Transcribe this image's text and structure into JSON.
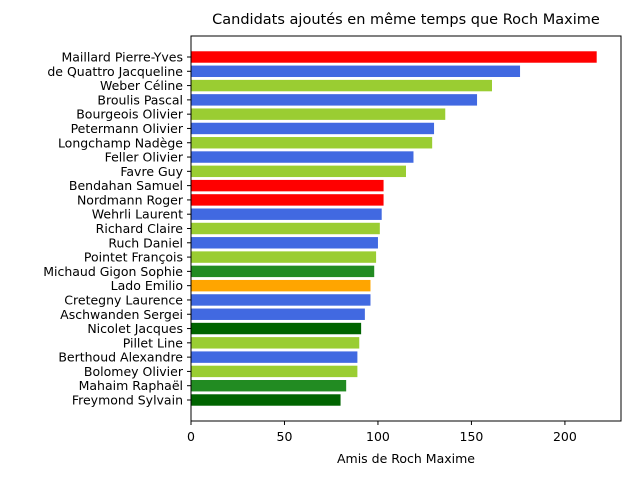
{
  "chart_data": {
    "type": "bar",
    "orientation": "horizontal",
    "title": "Candidats ajoutés en même temps que Roch Maxime",
    "xlabel": "Amis de Roch Maxime",
    "ylabel": "",
    "xlim": [
      0,
      230
    ],
    "xticks": [
      0,
      50,
      100,
      150,
      200
    ],
    "grid": false,
    "categories": [
      "Maillard Pierre-Yves",
      "de Quattro Jacqueline",
      "Weber Céline",
      "Broulis Pascal",
      "Bourgeois Olivier",
      "Petermann Olivier",
      "Longchamp Nadège",
      "Feller Olivier",
      "Favre Guy",
      "Bendahan Samuel",
      "Nordmann Roger",
      "Wehrli Laurent",
      "Richard Claire",
      "Ruch Daniel",
      "Pointet François",
      "Michaud Gigon Sophie",
      "Lado Emilio",
      "Cretegny Laurence",
      "Aschwanden Sergei",
      "Nicolet Jacques",
      "Pillet Line",
      "Berthoud Alexandre",
      "Bolomey Olivier",
      "Mahaim Raphaël",
      "Freymond Sylvain"
    ],
    "values": [
      217,
      176,
      161,
      153,
      136,
      130,
      129,
      119,
      115,
      103,
      103,
      102,
      101,
      100,
      99,
      98,
      96,
      96,
      93,
      91,
      90,
      89,
      89,
      83,
      80
    ],
    "colors": [
      "#ff0000",
      "#4169e1",
      "#9acd32",
      "#4169e1",
      "#9acd32",
      "#4169e1",
      "#9acd32",
      "#4169e1",
      "#9acd32",
      "#ff0000",
      "#ff0000",
      "#4169e1",
      "#9acd32",
      "#4169e1",
      "#9acd32",
      "#228b22",
      "#ffa500",
      "#4169e1",
      "#4169e1",
      "#006400",
      "#9acd32",
      "#4169e1",
      "#9acd32",
      "#228b22",
      "#006400"
    ]
  }
}
